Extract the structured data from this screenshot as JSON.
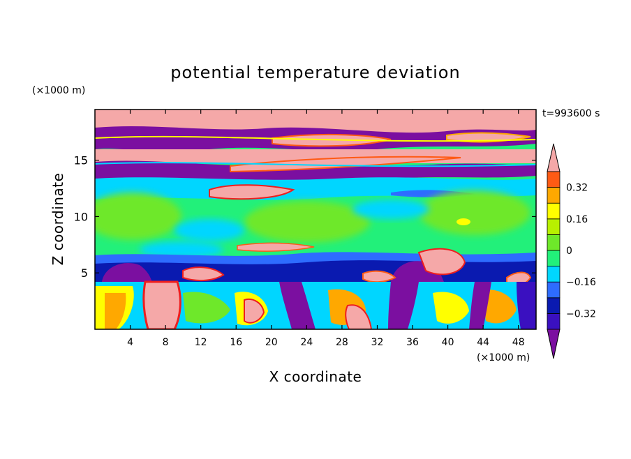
{
  "chart_data": {
    "type": "heatmap",
    "title": "potential temperature deviation",
    "xlabel": "X coordinate",
    "ylabel": "Z coordinate",
    "x_unit": "(×1000 m)",
    "y_unit": "(×1000 m)",
    "time_label": "t=993600 s",
    "xlim": [
      0,
      50
    ],
    "ylim": [
      0,
      19.5
    ],
    "x_ticks": [
      4,
      8,
      12,
      16,
      20,
      24,
      28,
      32,
      36,
      40,
      44,
      48
    ],
    "y_ticks": [
      5,
      10,
      15
    ],
    "x_tick_labels": [
      "4",
      "8",
      "12",
      "16",
      "20",
      "24",
      "28",
      "32",
      "36",
      "40",
      "44",
      "48"
    ],
    "y_tick_labels": [
      "5",
      "10",
      "15"
    ],
    "colorbar": {
      "levels": [
        -0.4,
        -0.32,
        -0.24,
        -0.16,
        -0.08,
        0,
        0.08,
        0.16,
        0.24,
        0.32,
        0.4
      ],
      "labeled_values": [
        "0.32",
        "0.16",
        "0",
        "−0.16",
        "−0.32"
      ],
      "colors_low_to_high": [
        "#7b0fa0",
        "#3a10c0",
        "#0a1ab0",
        "#2e6cff",
        "#00d6ff",
        "#22f07a",
        "#6ee82a",
        "#b8f000",
        "#ffff00",
        "#ffa800",
        "#ff5a14",
        "#ee1e1e",
        "#f5a8a8"
      ],
      "extend": "both"
    }
  }
}
